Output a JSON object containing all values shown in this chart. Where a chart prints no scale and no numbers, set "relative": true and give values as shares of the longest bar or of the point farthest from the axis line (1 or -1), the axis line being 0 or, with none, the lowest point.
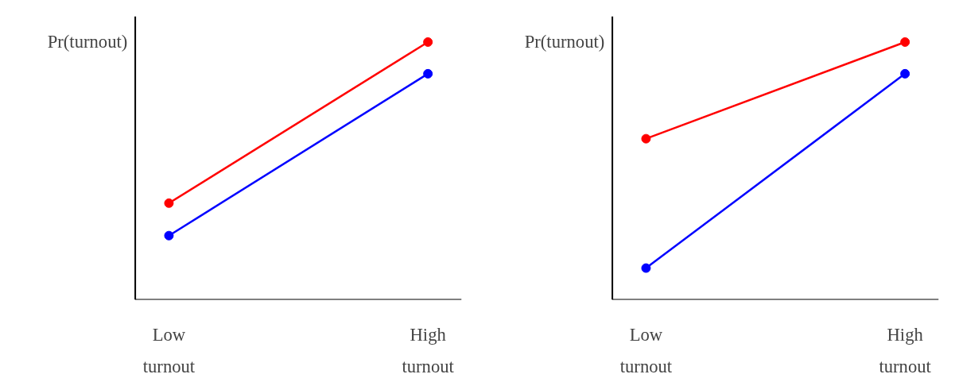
{
  "chart_data": [
    {
      "type": "line",
      "relative": true,
      "ylabel": "Pr(turnout)",
      "categories": [
        "Low\nturnout",
        "High\nturnout"
      ],
      "marker": "circle",
      "grid": false,
      "series": [
        {
          "color": "#ff0000",
          "values": [
            0.375,
            1
          ]
        },
        {
          "color": "#0000ff",
          "values": [
            0.249,
            0.877
          ]
        }
      ]
    },
    {
      "type": "line",
      "relative": true,
      "ylabel": "Pr(turnout)",
      "categories": [
        "Low\nturnout",
        "High\nturnout"
      ],
      "marker": "circle",
      "grid": false,
      "series": [
        {
          "color": "#ff0000",
          "values": [
            0.625,
            1
          ]
        },
        {
          "color": "#0000ff",
          "values": [
            0.123,
            0.877
          ]
        }
      ]
    }
  ]
}
